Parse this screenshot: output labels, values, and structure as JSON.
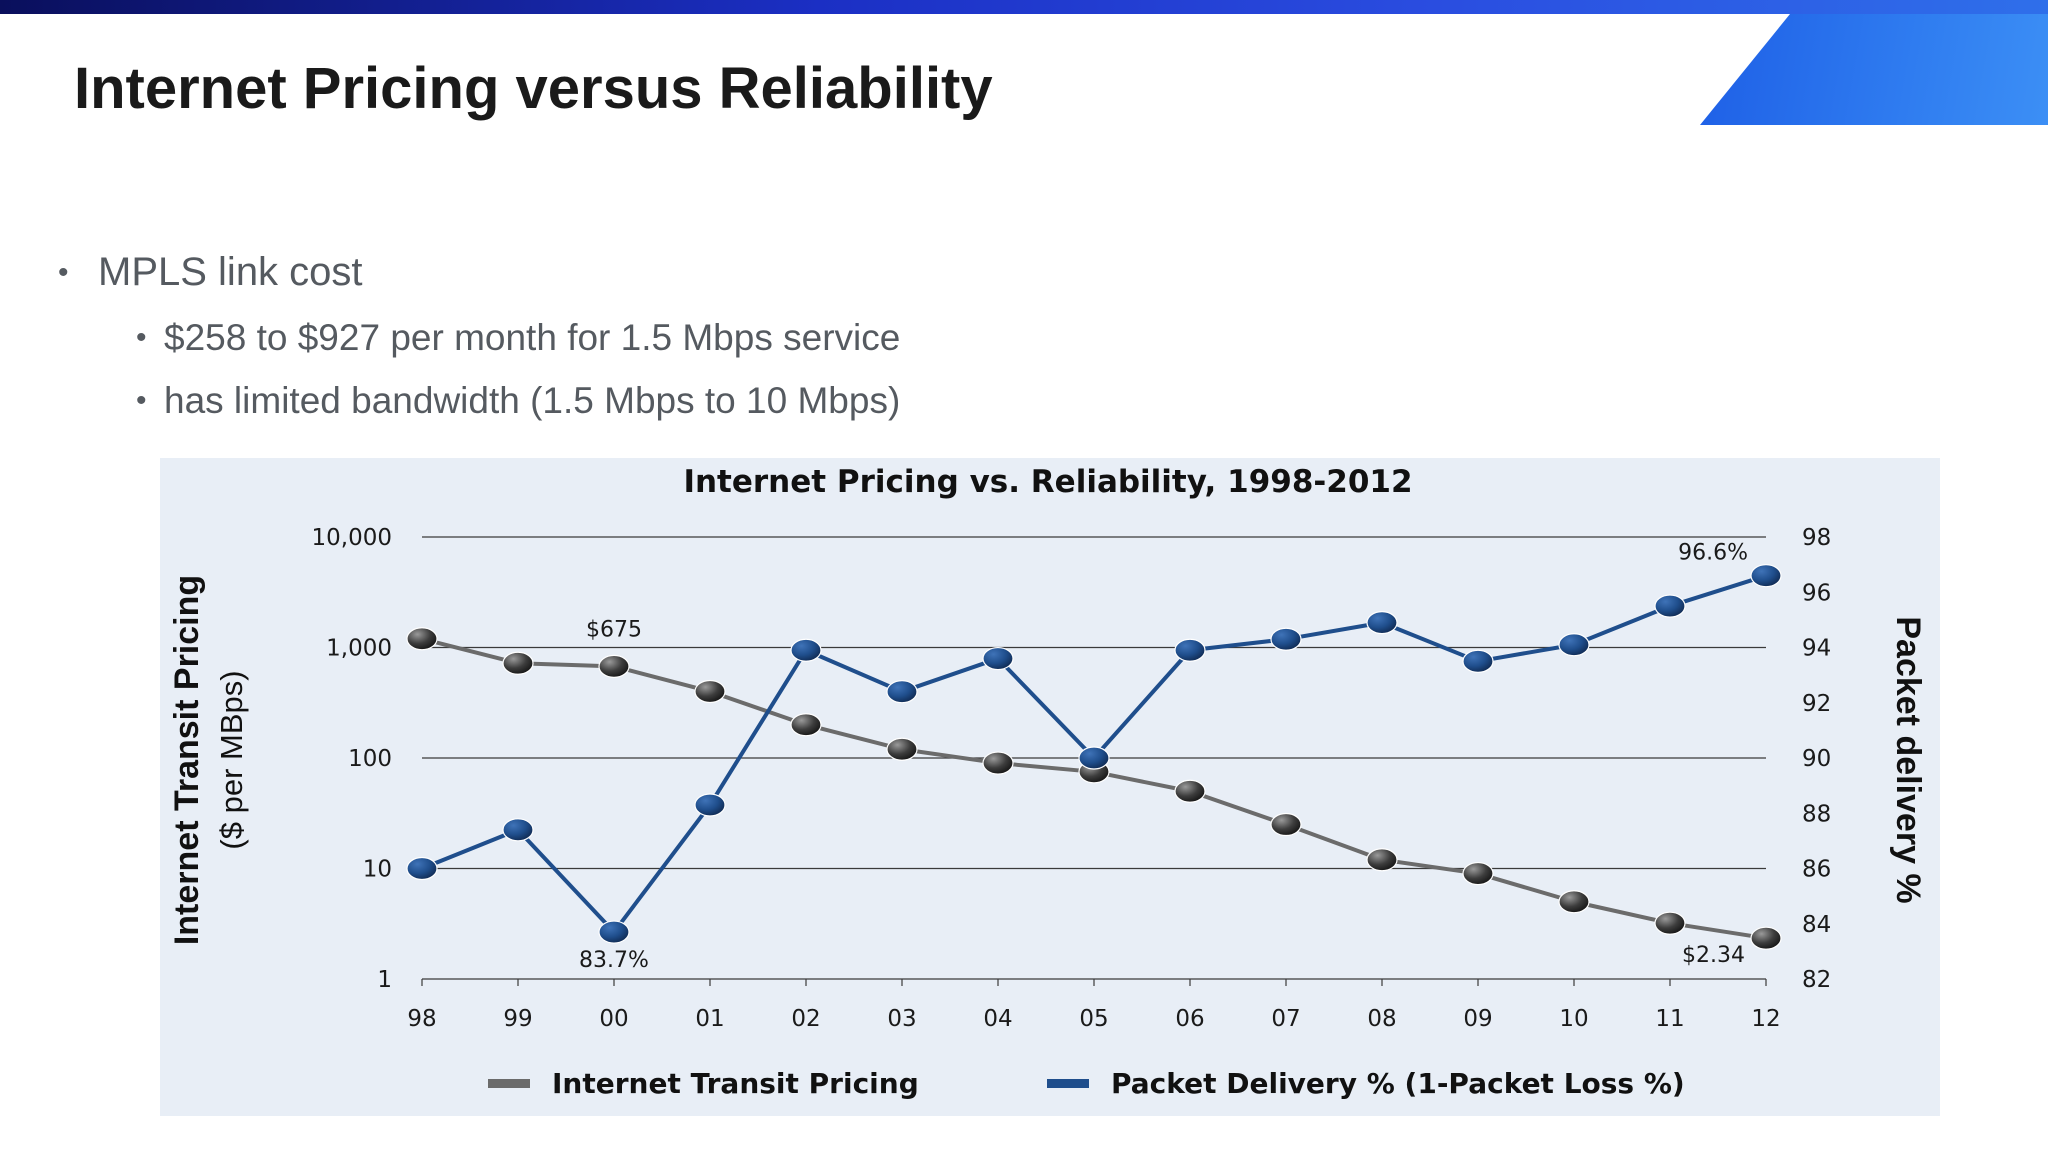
{
  "slide": {
    "title": "Internet Pricing versus Reliability",
    "bullets": [
      {
        "text": "MPLS link cost",
        "level": 1
      },
      {
        "text": "$258 to $927 per month for 1.5 Mbps service",
        "level": 2
      },
      {
        "text": "has limited bandwidth (1.5 Mbps to 10 Mbps)",
        "level": 2
      }
    ]
  },
  "chart_data": {
    "type": "line",
    "title": "Internet Pricing vs. Reliability, 1998-2012",
    "categories": [
      "98",
      "99",
      "00",
      "01",
      "02",
      "03",
      "04",
      "05",
      "06",
      "07",
      "08",
      "09",
      "10",
      "11",
      "12"
    ],
    "y_left": {
      "label": "Internet Transit Pricing",
      "sublabel": "($ per MBps)",
      "scale": "log",
      "range": [
        1,
        10000
      ],
      "ticks": [
        {
          "value": 1,
          "label": "1"
        },
        {
          "value": 10,
          "label": "10"
        },
        {
          "value": 100,
          "label": "100"
        },
        {
          "value": 1000,
          "label": "1,000"
        },
        {
          "value": 10000,
          "label": "10,000"
        }
      ]
    },
    "y_right": {
      "label": "Packet delivery %",
      "scale": "linear",
      "range": [
        82,
        98
      ],
      "ticks": [
        "82",
        "84",
        "86",
        "88",
        "90",
        "92",
        "94",
        "96",
        "98"
      ]
    },
    "series": [
      {
        "name": "Internet Transit Pricing",
        "axis": "left",
        "color": "#6b6b6b",
        "marker_color": "#3a3a3a",
        "values": [
          1200,
          720,
          675,
          400,
          200,
          120,
          90,
          75,
          50,
          25,
          12,
          9,
          5,
          3.2,
          2.34
        ]
      },
      {
        "name": "Packet Delivery % (1-Packet Loss %)",
        "axis": "right",
        "color": "#1f4e8c",
        "marker_color": "#1f4e8c",
        "values": [
          86.0,
          87.4,
          83.7,
          88.3,
          93.9,
          92.4,
          93.6,
          90.0,
          93.9,
          94.3,
          94.9,
          93.5,
          94.1,
          95.5,
          96.6
        ]
      }
    ],
    "annotations": [
      {
        "text": "$675",
        "series": 0,
        "index": 2,
        "placement": "above"
      },
      {
        "text": "83.7%",
        "series": 1,
        "index": 2,
        "placement": "below"
      },
      {
        "text": "96.6%",
        "series": 1,
        "index": 14,
        "placement": "above-left"
      },
      {
        "text": "$2.34",
        "series": 0,
        "index": 14,
        "placement": "left"
      }
    ],
    "gridlines": true,
    "legend_position": "bottom"
  }
}
